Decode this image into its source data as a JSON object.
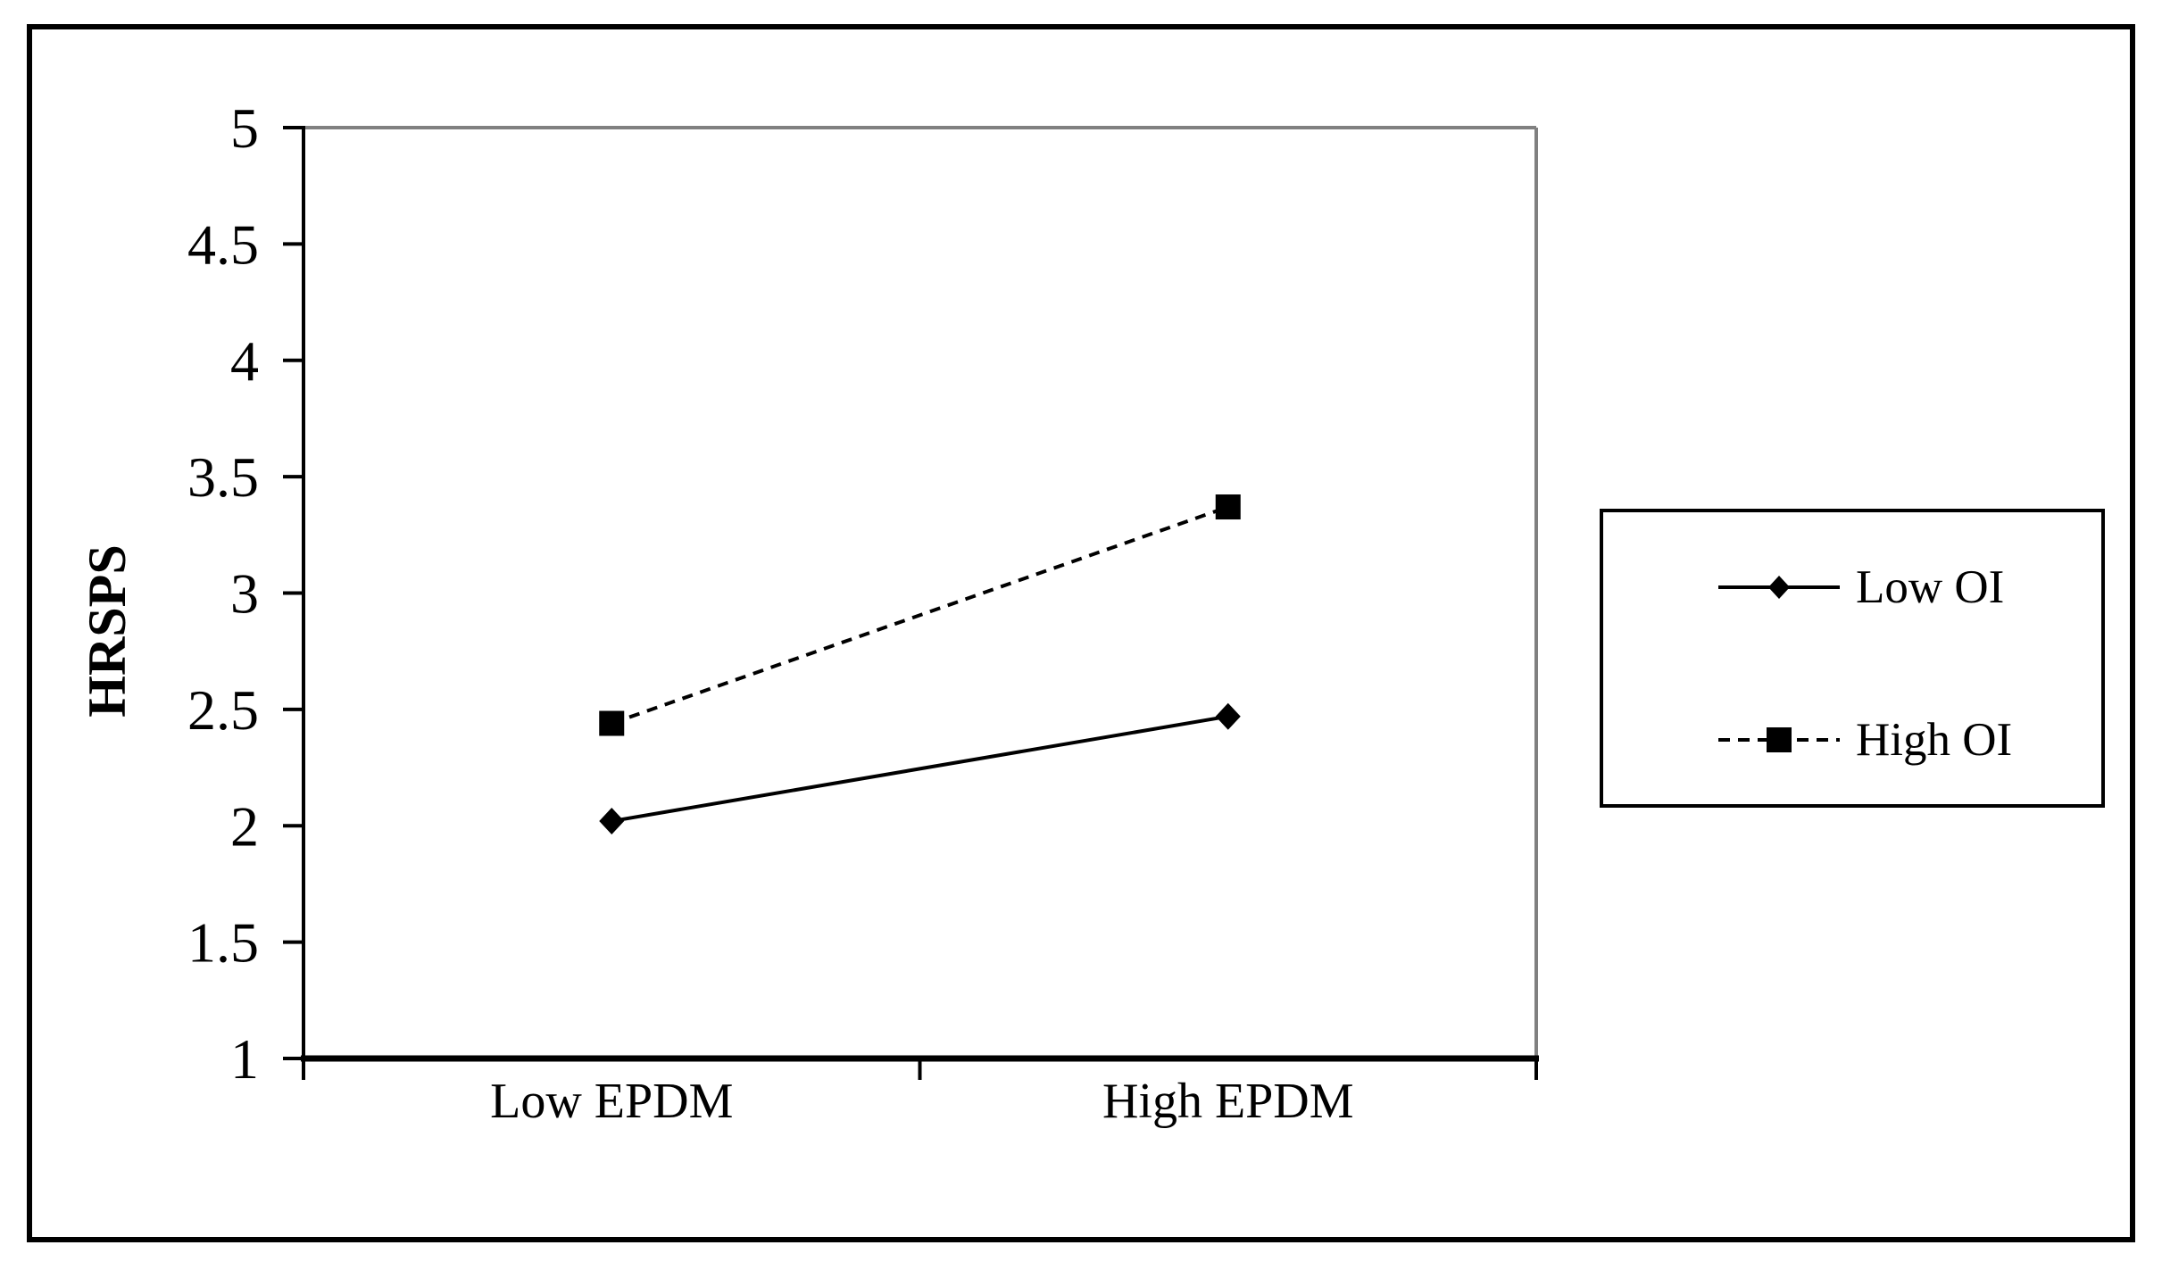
{
  "figure": {
    "background_color": "#ffffff",
    "frame_border_color": "#000000"
  },
  "chart_data": {
    "type": "line",
    "title": "",
    "categories": [
      "Low EPDM",
      "High EPDM"
    ],
    "series": [
      {
        "name": "Low OI",
        "values": [
          2.02,
          2.47
        ],
        "color": "#000000",
        "line_style": "solid",
        "marker": "diamond"
      },
      {
        "name": "High OI",
        "values": [
          2.44,
          3.37
        ],
        "color": "#000000",
        "line_style": "dashed",
        "marker": "square"
      }
    ],
    "xlabel": "",
    "ylabel": "HRSPS",
    "ylim": [
      1,
      5
    ],
    "yticks": [
      5,
      4.5,
      4,
      3.5,
      3,
      2.5,
      2,
      1.5,
      1
    ],
    "grid": false,
    "legend_position": "right-outside",
    "axis_color": "#000000",
    "plot_border_color": "#808080"
  }
}
